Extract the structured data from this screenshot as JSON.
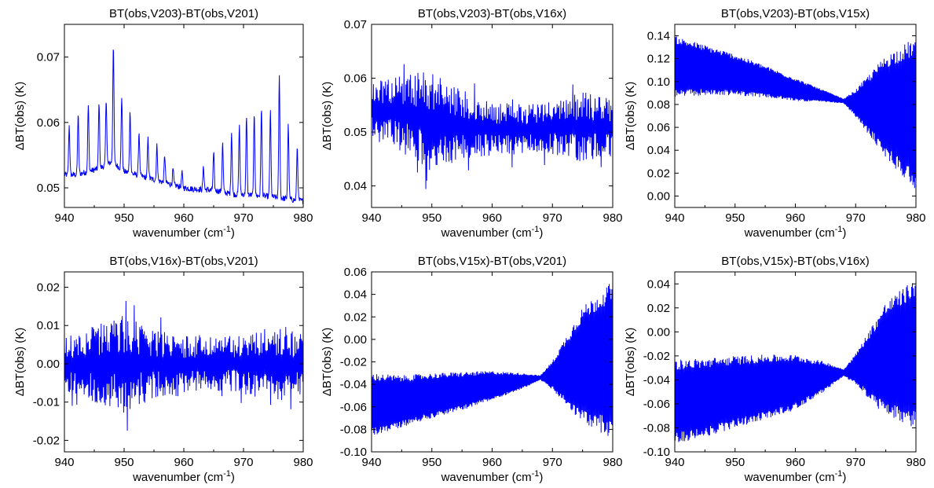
{
  "figure": {
    "series_color": "#0000ff",
    "axis_color": "#000000"
  },
  "chart_data": [
    {
      "type": "line",
      "title": "BT(obs,V203)-BT(obs,V201)",
      "xlabel": "wavenumber (cm",
      "xlabel_sup": "-1",
      "xlabel_close": ")",
      "ylabel": "ΔBT(obs) (K)",
      "xlim": [
        940,
        980
      ],
      "ylim": [
        0.047,
        0.075
      ],
      "xticks": [
        940,
        950,
        960,
        970,
        980
      ],
      "xtick_labels": [
        "940",
        "950",
        "960",
        "970",
        "980"
      ],
      "yticks": [
        0.05,
        0.06,
        0.07
      ],
      "ytick_labels": [
        "0.05",
        "0.06",
        "0.07"
      ],
      "pattern": "peaks",
      "x": [
        940,
        942,
        944,
        946,
        948,
        950,
        952,
        954,
        956,
        958,
        960,
        962,
        964,
        966,
        968,
        970,
        972,
        974,
        976,
        978,
        980
      ],
      "y": [
        0.052,
        0.052,
        0.0525,
        0.053,
        0.054,
        0.0525,
        0.052,
        0.0515,
        0.051,
        0.0505,
        0.05,
        0.0498,
        0.0497,
        0.0495,
        0.049,
        0.049,
        0.0488,
        0.0487,
        0.0485,
        0.0482,
        0.048
      ],
      "peaks": [
        {
          "x": 940.8,
          "y": 0.0595
        },
        {
          "x": 942.3,
          "y": 0.0612
        },
        {
          "x": 944.0,
          "y": 0.0626
        },
        {
          "x": 945.8,
          "y": 0.063
        },
        {
          "x": 947.0,
          "y": 0.0636
        },
        {
          "x": 948.2,
          "y": 0.072
        },
        {
          "x": 949.6,
          "y": 0.064
        },
        {
          "x": 951.0,
          "y": 0.0617
        },
        {
          "x": 952.5,
          "y": 0.0585
        },
        {
          "x": 954.0,
          "y": 0.0575
        },
        {
          "x": 955.5,
          "y": 0.0565
        },
        {
          "x": 956.8,
          "y": 0.055
        },
        {
          "x": 958.2,
          "y": 0.0528
        },
        {
          "x": 959.7,
          "y": 0.0523
        },
        {
          "x": 963.3,
          "y": 0.0532
        },
        {
          "x": 965.0,
          "y": 0.0553
        },
        {
          "x": 966.5,
          "y": 0.0568
        },
        {
          "x": 968.0,
          "y": 0.0585
        },
        {
          "x": 969.3,
          "y": 0.0595
        },
        {
          "x": 970.5,
          "y": 0.0607
        },
        {
          "x": 971.8,
          "y": 0.0612
        },
        {
          "x": 973.0,
          "y": 0.0622
        },
        {
          "x": 974.5,
          "y": 0.0616
        },
        {
          "x": 976.0,
          "y": 0.067
        },
        {
          "x": 977.5,
          "y": 0.0596
        },
        {
          "x": 979.0,
          "y": 0.0562
        }
      ]
    },
    {
      "type": "line",
      "title": "BT(obs,V203)-BT(obs,V16x)",
      "xlabel": "wavenumber (cm",
      "xlabel_sup": "-1",
      "xlabel_close": ")",
      "ylabel": "ΔBT(obs) (K)",
      "xlim": [
        940,
        980
      ],
      "ylim": [
        0.036,
        0.07
      ],
      "xticks": [
        940,
        950,
        960,
        970,
        980
      ],
      "xtick_labels": [
        "940",
        "950",
        "960",
        "970",
        "980"
      ],
      "yticks": [
        0.04,
        0.05,
        0.06,
        0.07
      ],
      "ytick_labels": [
        "0.04",
        "0.05",
        "0.06",
        "0.07"
      ],
      "pattern": "noise",
      "x": [
        940,
        945,
        950,
        955,
        960,
        965,
        970,
        975,
        980
      ],
      "y": [
        0.054,
        0.0535,
        0.052,
        0.051,
        0.0505,
        0.0505,
        0.0508,
        0.051,
        0.0508
      ],
      "amplitude": [
        0.0055,
        0.0075,
        0.0095,
        0.0065,
        0.005,
        0.0048,
        0.0052,
        0.0065,
        0.0055
      ]
    },
    {
      "type": "line",
      "title": "BT(obs,V203)-BT(obs,V15x)",
      "xlabel": "wavenumber (cm",
      "xlabel_sup": "-1",
      "xlabel_close": ")",
      "ylabel": "ΔBT(obs) (K)",
      "xlim": [
        940,
        980
      ],
      "ylim": [
        -0.01,
        0.15
      ],
      "xticks": [
        940,
        950,
        960,
        970,
        980
      ],
      "xtick_labels": [
        "940",
        "950",
        "960",
        "970",
        "980"
      ],
      "yticks": [
        0.0,
        0.02,
        0.04,
        0.06,
        0.08,
        0.1,
        0.12,
        0.14
      ],
      "ytick_labels": [
        "0.00",
        "0.02",
        "0.04",
        "0.06",
        "0.08",
        "0.10",
        "0.12",
        "0.14"
      ],
      "pattern": "oscillation",
      "x": [
        940,
        945,
        950,
        955,
        960,
        965,
        968,
        970,
        975,
        980
      ],
      "y": [
        0.113,
        0.11,
        0.106,
        0.1,
        0.093,
        0.087,
        0.083,
        0.081,
        0.078,
        0.072
      ],
      "amplitude": [
        0.027,
        0.022,
        0.018,
        0.014,
        0.01,
        0.005,
        0.002,
        0.012,
        0.045,
        0.067
      ]
    },
    {
      "type": "line",
      "title": "BT(obs,V16x)-BT(obs,V201)",
      "xlabel": "wavenumber (cm",
      "xlabel_sup": "-1",
      "xlabel_close": ")",
      "ylabel": "ΔBT(obs) (K)",
      "xlim": [
        940,
        980
      ],
      "ylim": [
        -0.023,
        0.024
      ],
      "xticks": [
        940,
        950,
        960,
        970,
        980
      ],
      "xtick_labels": [
        "940",
        "950",
        "960",
        "970",
        "980"
      ],
      "yticks": [
        -0.02,
        -0.01,
        0.0,
        0.01,
        0.02
      ],
      "ytick_labels": [
        "-0.02",
        "-0.01",
        "0.00",
        "0.01",
        "0.02"
      ],
      "pattern": "noise",
      "x": [
        940,
        945,
        950,
        955,
        960,
        965,
        970,
        975,
        980
      ],
      "y": [
        0.0,
        0.0,
        0.0,
        0.0,
        0.0,
        0.0,
        0.0,
        0.0,
        0.0
      ],
      "amplitude": [
        0.007,
        0.01,
        0.013,
        0.009,
        0.0075,
        0.007,
        0.008,
        0.01,
        0.008
      ]
    },
    {
      "type": "line",
      "title": "BT(obs,V15x)-BT(obs,V201)",
      "xlabel": "wavenumber (cm",
      "xlabel_sup": "-1",
      "xlabel_close": ")",
      "ylabel": "ΔBT(obs) (K)",
      "xlim": [
        940,
        980
      ],
      "ylim": [
        -0.1,
        0.06
      ],
      "xticks": [
        940,
        950,
        960,
        970,
        980
      ],
      "xtick_labels": [
        "940",
        "950",
        "960",
        "970",
        "980"
      ],
      "yticks": [
        -0.1,
        -0.08,
        -0.06,
        -0.04,
        -0.02,
        0.0,
        0.02,
        0.04,
        0.06
      ],
      "ytick_labels": [
        "-0.10",
        "-0.08",
        "-0.06",
        "-0.04",
        "-0.02",
        "0.00",
        "0.02",
        "0.04",
        "0.06"
      ],
      "pattern": "oscillation",
      "x": [
        940,
        945,
        950,
        955,
        960,
        965,
        968,
        970,
        975,
        980
      ],
      "y": [
        -0.058,
        -0.055,
        -0.05,
        -0.046,
        -0.041,
        -0.037,
        -0.034,
        -0.032,
        -0.023,
        -0.018
      ],
      "amplitude": [
        0.028,
        0.023,
        0.02,
        0.017,
        0.013,
        0.007,
        0.002,
        0.013,
        0.052,
        0.07
      ]
    },
    {
      "type": "line",
      "title": "BT(obs,V15x)-BT(obs,V16x)",
      "xlabel": "wavenumber (cm",
      "xlabel_sup": "-1",
      "xlabel_close": ")",
      "ylabel": "ΔBT(obs) (K)",
      "xlim": [
        940,
        980
      ],
      "ylim": [
        -0.1,
        0.05
      ],
      "xticks": [
        940,
        950,
        960,
        970,
        980
      ],
      "xtick_labels": [
        "940",
        "950",
        "960",
        "970",
        "980"
      ],
      "yticks": [
        -0.1,
        -0.08,
        -0.06,
        -0.04,
        -0.02,
        0.0,
        0.02,
        0.04
      ],
      "ytick_labels": [
        "-0.10",
        "-0.08",
        "-0.06",
        "-0.04",
        "-0.02",
        "0.00",
        "0.02",
        "0.04"
      ],
      "pattern": "oscillation",
      "x": [
        940,
        945,
        950,
        955,
        960,
        965,
        968,
        970,
        975,
        980
      ],
      "y": [
        -0.058,
        -0.055,
        -0.05,
        -0.046,
        -0.042,
        -0.037,
        -0.034,
        -0.031,
        -0.023,
        -0.018
      ],
      "amplitude": [
        0.035,
        0.033,
        0.03,
        0.027,
        0.023,
        0.012,
        0.003,
        0.013,
        0.048,
        0.063
      ]
    }
  ]
}
